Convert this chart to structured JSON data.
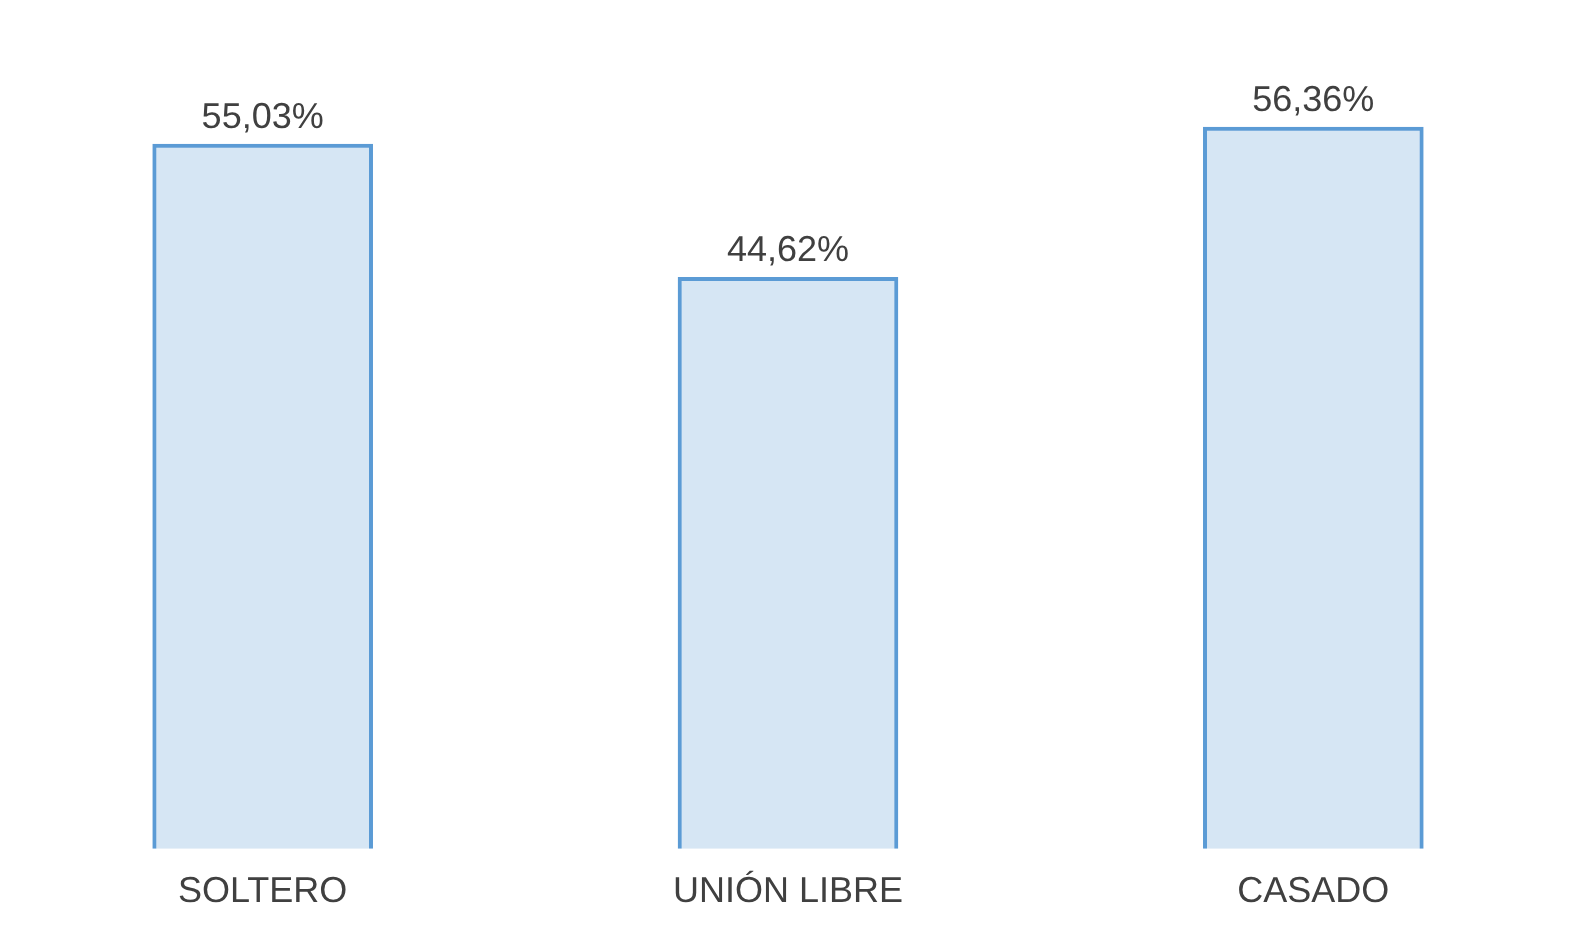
{
  "chart_data": {
    "type": "bar",
    "categories": [
      "SOLTERO",
      "UNIÓN LIBRE",
      "CASADO"
    ],
    "series": [
      {
        "color": "#5b9bd5",
        "values": [
          55.03,
          44.62,
          56.36
        ],
        "value_labels": [
          "55,03%",
          "44,62%",
          "56,36%"
        ]
      }
    ],
    "grid": false,
    "legend": false
  }
}
